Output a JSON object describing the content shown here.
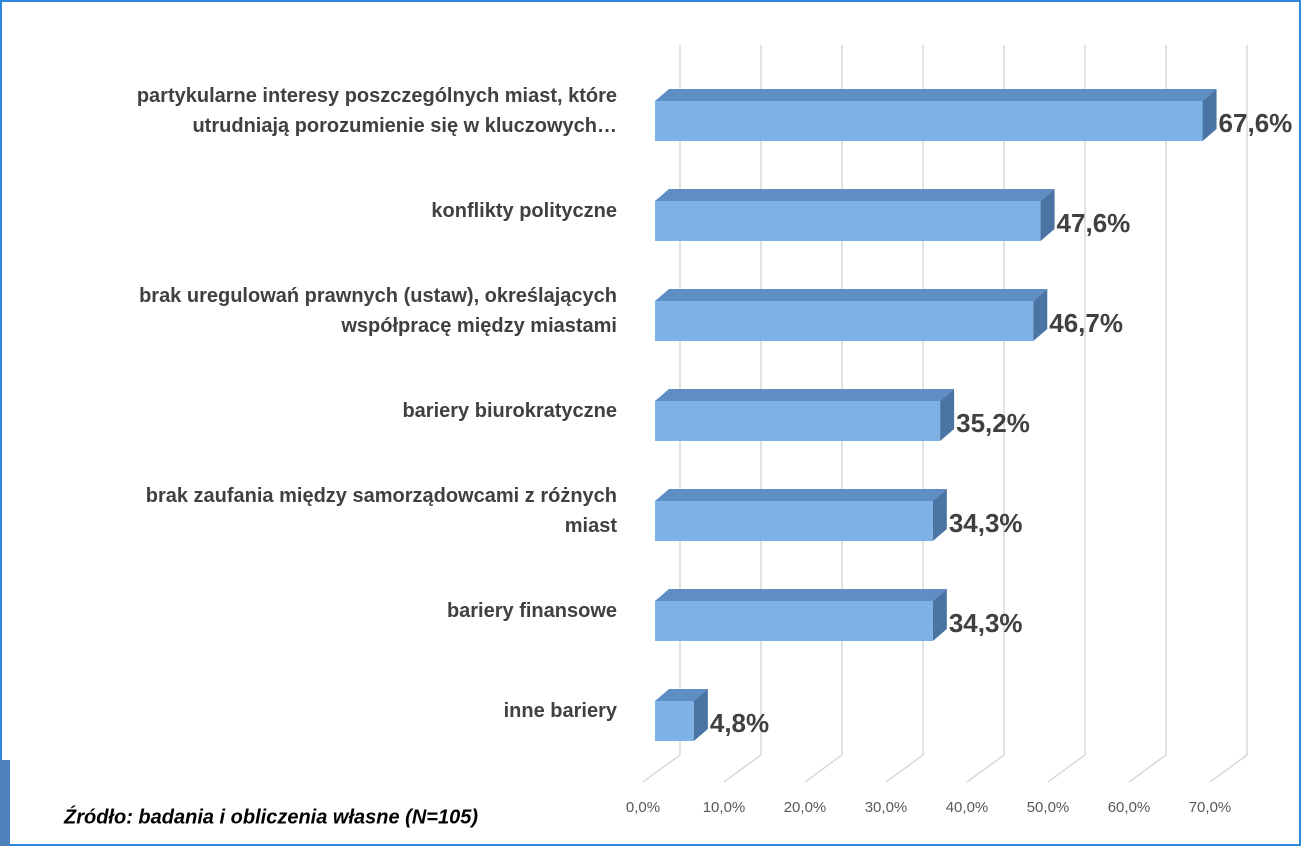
{
  "chart_data": {
    "type": "bar3d_horizontal",
    "categories": [
      "partykularne interesy poszczególnych miast, które\nutrudniają porozumienie się w kluczowych…",
      "konflikty polityczne",
      "brak uregulowań prawnych (ustaw), określających\nwspółpracę między miastami",
      "bariery biurokratyczne",
      "brak zaufania między samorządowcami z różnych\nmiast",
      "bariery finansowe",
      "inne bariery"
    ],
    "values": [
      67.6,
      47.6,
      46.7,
      35.2,
      34.3,
      34.3,
      4.8
    ],
    "value_labels": [
      "67,6%",
      "47,6%",
      "46,7%",
      "35,2%",
      "34,3%",
      "34,3%",
      "4,8%"
    ],
    "color": "#7eb2e6",
    "xlim": [
      0,
      70
    ],
    "xticks": [
      {
        "value": 0,
        "label": "0,0%"
      },
      {
        "value": 10,
        "label": "10,0%"
      },
      {
        "value": 20,
        "label": "20,0%"
      },
      {
        "value": 30,
        "label": "30,0%"
      },
      {
        "value": 40,
        "label": "40,0%"
      },
      {
        "value": 50,
        "label": "50,0%"
      },
      {
        "value": 60,
        "label": "60,0%"
      },
      {
        "value": 70,
        "label": "70,0%"
      }
    ],
    "grid": true,
    "source": "Źródło: badania i obliczenia własne (N=105)"
  }
}
